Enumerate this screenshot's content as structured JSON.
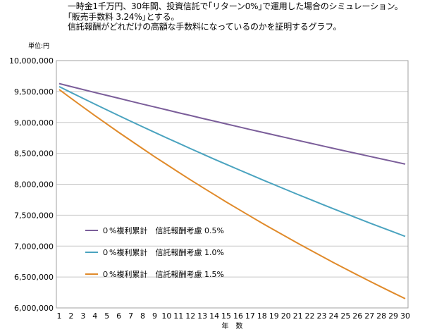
{
  "caption": {
    "line1": "一時金1千万円、30年間、投資信託で｢リターン0%｣で運用した場合のシミュレーション。",
    "line2": "｢販売手数料 3.24%｣とする。",
    "line3": "信託報酬がどれだけの高額な手数料になっているのかを証明するグラフ。"
  },
  "colors": {
    "series_0_5": "#7b5e9a",
    "series_1_0": "#4aa3bf",
    "series_1_5": "#e08a2a",
    "grid": "#c8c8c8",
    "plot_border": "#a0a0a0"
  },
  "chart_data": {
    "type": "line",
    "unit_label": "単位:円",
    "xlabel": "年　数",
    "ylim": [
      6000000,
      10000000
    ],
    "y_ticks": [
      6000000,
      6500000,
      7000000,
      7500000,
      8000000,
      8500000,
      9000000,
      9500000,
      10000000
    ],
    "y_tick_labels": [
      "6,000,000",
      "6,500,000",
      "7,000,000",
      "7,500,000",
      "8,000,000",
      "8,500,000",
      "9,000,000",
      "9,500,000",
      "10,000,000"
    ],
    "x": [
      1,
      2,
      3,
      4,
      5,
      6,
      7,
      8,
      9,
      10,
      11,
      12,
      13,
      14,
      15,
      16,
      17,
      18,
      19,
      20,
      21,
      22,
      23,
      24,
      25,
      26,
      27,
      28,
      29,
      30
    ],
    "legend_position": "left-lower",
    "grid": "horizontal",
    "series": [
      {
        "name": "０%複利累計　信託報酬考慮 0.5%",
        "color": "#7b5e9a",
        "values": [
          9628000,
          9580000,
          9532000,
          9484000,
          9437000,
          9390000,
          9343000,
          9296000,
          9250000,
          9203000,
          9157000,
          9112000,
          9066000,
          9021000,
          8976000,
          8931000,
          8886000,
          8842000,
          8798000,
          8754000,
          8710000,
          8667000,
          8623000,
          8580000,
          8537000,
          8495000,
          8452000,
          8410000,
          8368000,
          8326000
        ]
      },
      {
        "name": "０%複利累計　信託報酬考慮 1.0%",
        "color": "#4aa3bf",
        "values": [
          9580000,
          9484000,
          9389000,
          9295000,
          9202000,
          9110000,
          9019000,
          8929000,
          8840000,
          8751000,
          8664000,
          8577000,
          8491000,
          8406000,
          8322000,
          8239000,
          8157000,
          8075000,
          7994000,
          7914000,
          7835000,
          7757000,
          7679000,
          7602000,
          7526000,
          7451000,
          7376000,
          7303000,
          7230000,
          7157000
        ]
      },
      {
        "name": "０%複利累計　信託報酬考慮 1.5%",
        "color": "#e08a2a",
        "values": [
          9532000,
          9389000,
          9248000,
          9109000,
          8973000,
          8838000,
          8706000,
          8575000,
          8446000,
          8320000,
          8195000,
          8072000,
          7951000,
          7832000,
          7714000,
          7599000,
          7485000,
          7372000,
          7262000,
          7153000,
          7045000,
          6940000,
          6836000,
          6733000,
          6632000,
          6532000,
          6434000,
          6338000,
          6243000,
          6149000
        ]
      }
    ]
  }
}
